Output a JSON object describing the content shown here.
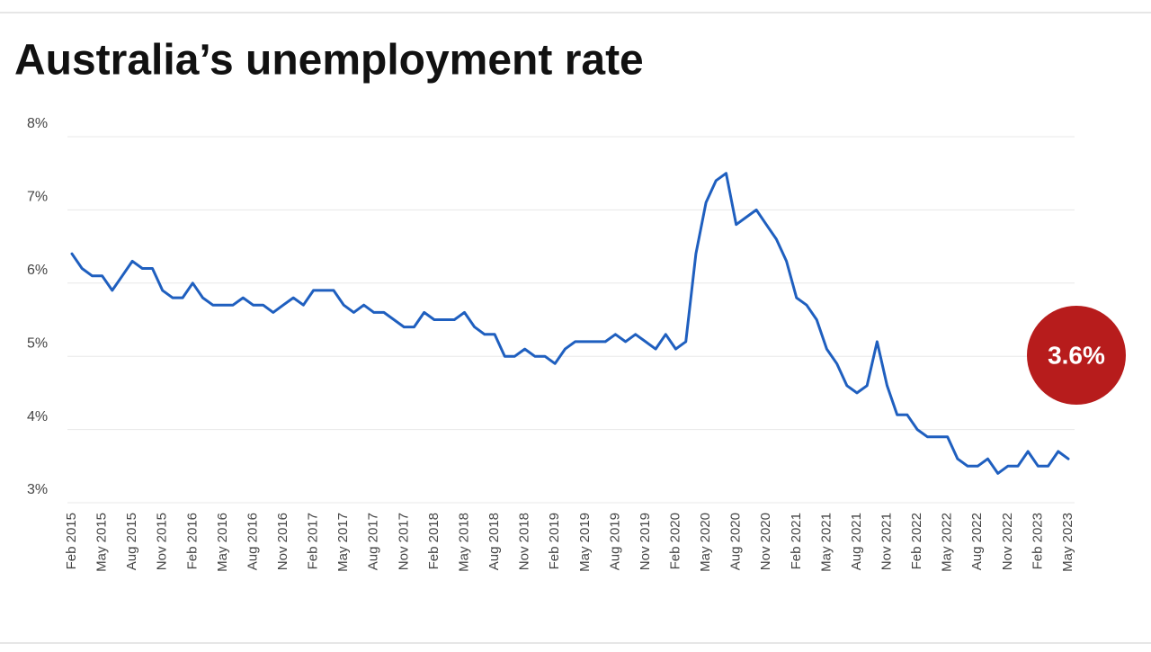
{
  "chart_data": {
    "type": "line",
    "title": "Australia’s unemployment rate",
    "categories": [
      "Feb 2015",
      null,
      null,
      "May 2015",
      null,
      null,
      "Aug 2015",
      null,
      null,
      "Nov 2015",
      null,
      null,
      "Feb 2016",
      null,
      null,
      "May 2016",
      null,
      null,
      "Aug 2016",
      null,
      null,
      "Nov 2016",
      null,
      null,
      "Feb 2017",
      null,
      null,
      "May 2017",
      null,
      null,
      "Aug 2017",
      null,
      null,
      "Nov 2017",
      null,
      null,
      "Feb 2018",
      null,
      null,
      "May 2018",
      null,
      null,
      "Aug 2018",
      null,
      null,
      "Nov 2018",
      null,
      null,
      "Feb 2019",
      null,
      null,
      "May 2019",
      null,
      null,
      "Aug 2019",
      null,
      null,
      "Nov 2019",
      null,
      null,
      "Feb 2020",
      null,
      null,
      "May 2020",
      null,
      null,
      "Aug 2020",
      null,
      null,
      "Nov 2020",
      null,
      null,
      "Feb 2021",
      null,
      null,
      "May 2021",
      null,
      null,
      "Aug 2021",
      null,
      null,
      "Nov 2021",
      null,
      null,
      "Feb 2022",
      null,
      null,
      "May 2022",
      null,
      null,
      "Aug 2022",
      null,
      null,
      "Nov 2022",
      null,
      null,
      "Feb 2023",
      null,
      null,
      "May 2023"
    ],
    "values": [
      6.4,
      6.2,
      6.1,
      6.1,
      5.9,
      6.1,
      6.3,
      6.2,
      6.2,
      5.9,
      5.8,
      5.8,
      6.0,
      5.8,
      5.7,
      5.7,
      5.7,
      5.8,
      5.7,
      5.7,
      5.6,
      5.7,
      5.8,
      5.7,
      5.9,
      5.9,
      5.9,
      5.7,
      5.6,
      5.7,
      5.6,
      5.6,
      5.5,
      5.4,
      5.4,
      5.6,
      5.5,
      5.5,
      5.5,
      5.6,
      5.4,
      5.3,
      5.3,
      5.0,
      5.0,
      5.1,
      5.0,
      5.0,
      4.9,
      5.1,
      5.2,
      5.2,
      5.2,
      5.2,
      5.3,
      5.2,
      5.3,
      5.2,
      5.1,
      5.3,
      5.1,
      5.2,
      6.4,
      7.1,
      7.4,
      7.5,
      6.8,
      6.9,
      7.0,
      6.8,
      6.6,
      6.3,
      5.8,
      5.7,
      5.5,
      5.1,
      4.9,
      4.6,
      4.5,
      4.6,
      5.2,
      4.6,
      4.2,
      4.2,
      4.0,
      3.9,
      3.9,
      3.9,
      3.6,
      3.5,
      3.5,
      3.6,
      3.4,
      3.5,
      3.5,
      3.7,
      3.5,
      3.5,
      3.7,
      3.6
    ],
    "color": "#1f5fbf",
    "ylim": [
      3,
      8
    ],
    "yticks": [
      {
        "value": 3,
        "label": "3%"
      },
      {
        "value": 4,
        "label": "4%"
      },
      {
        "value": 5,
        "label": "5%"
      },
      {
        "value": 6,
        "label": "6%"
      },
      {
        "value": 7,
        "label": "7%"
      },
      {
        "value": 8,
        "label": "8%"
      }
    ],
    "grid": true,
    "annotation": "3.6%"
  }
}
